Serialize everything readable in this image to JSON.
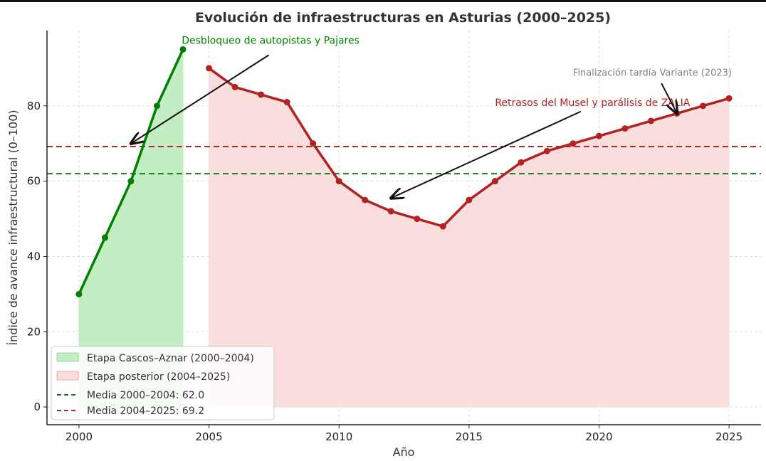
{
  "chart_data": {
    "type": "line",
    "title": "Evolución de infraestructuras en Asturias (2000–2025)",
    "xlabel": "Año",
    "ylabel": "Índice de avance infraestructural (0–100)",
    "xlim": [
      1998.77,
      2026.23
    ],
    "ylim": [
      -4.7,
      100
    ],
    "xticks": [
      2000,
      2005,
      2010,
      2015,
      2020,
      2025
    ],
    "yticks": [
      0,
      20,
      40,
      60,
      80
    ],
    "grid": true,
    "series": [
      {
        "name": "Etapa Cascos–Aznar (2000–2004)",
        "color": "#008000",
        "fill": "#c3eec3",
        "x": [
          2000,
          2001,
          2002,
          2003,
          2004
        ],
        "y": [
          30,
          45,
          60,
          80,
          95
        ]
      },
      {
        "name": "Etapa posterior (2004–2025)",
        "color": "#b22222",
        "fill": "#fadddd",
        "x": [
          2005,
          2006,
          2007,
          2008,
          2009,
          2010,
          2011,
          2012,
          2013,
          2014,
          2015,
          2016,
          2017,
          2018,
          2019,
          2020,
          2021,
          2022,
          2023,
          2024,
          2025
        ],
        "y": [
          90,
          85,
          83,
          81,
          70,
          60,
          55,
          52,
          50,
          48,
          55,
          60,
          65,
          68,
          70,
          72,
          74,
          76,
          78,
          80,
          82
        ]
      }
    ],
    "hlines": [
      {
        "label": "Media 2000–2004: 62.0",
        "value": 62.0,
        "color": "#1a7a1a"
      },
      {
        "label": "Media 2004–2025: 69.2",
        "value": 69.2,
        "color": "#a52a2a"
      }
    ],
    "annotations": [
      {
        "text": "Desbloqueo de autopistas y Pajares",
        "color": "#008000",
        "text_at": [
          2003.95,
          96.5
        ],
        "point": [
          2002,
          70
        ],
        "tail": [
          2007.3,
          93.5
        ]
      },
      {
        "text": "Retrasos del Musel y parálisis de ZALIA",
        "color": "#b22222",
        "text_at": [
          2016,
          80
        ],
        "point": [
          2012,
          55.5
        ],
        "tail": [
          2019.3,
          78.5
        ]
      },
      {
        "text": "Finalización tardía Variante (2023)",
        "color": "#808080",
        "text_at": [
          2019,
          88
        ],
        "point": [
          2023,
          78
        ],
        "tail": [
          2022.4,
          86
        ]
      }
    ],
    "legend_position": "lower-left"
  }
}
